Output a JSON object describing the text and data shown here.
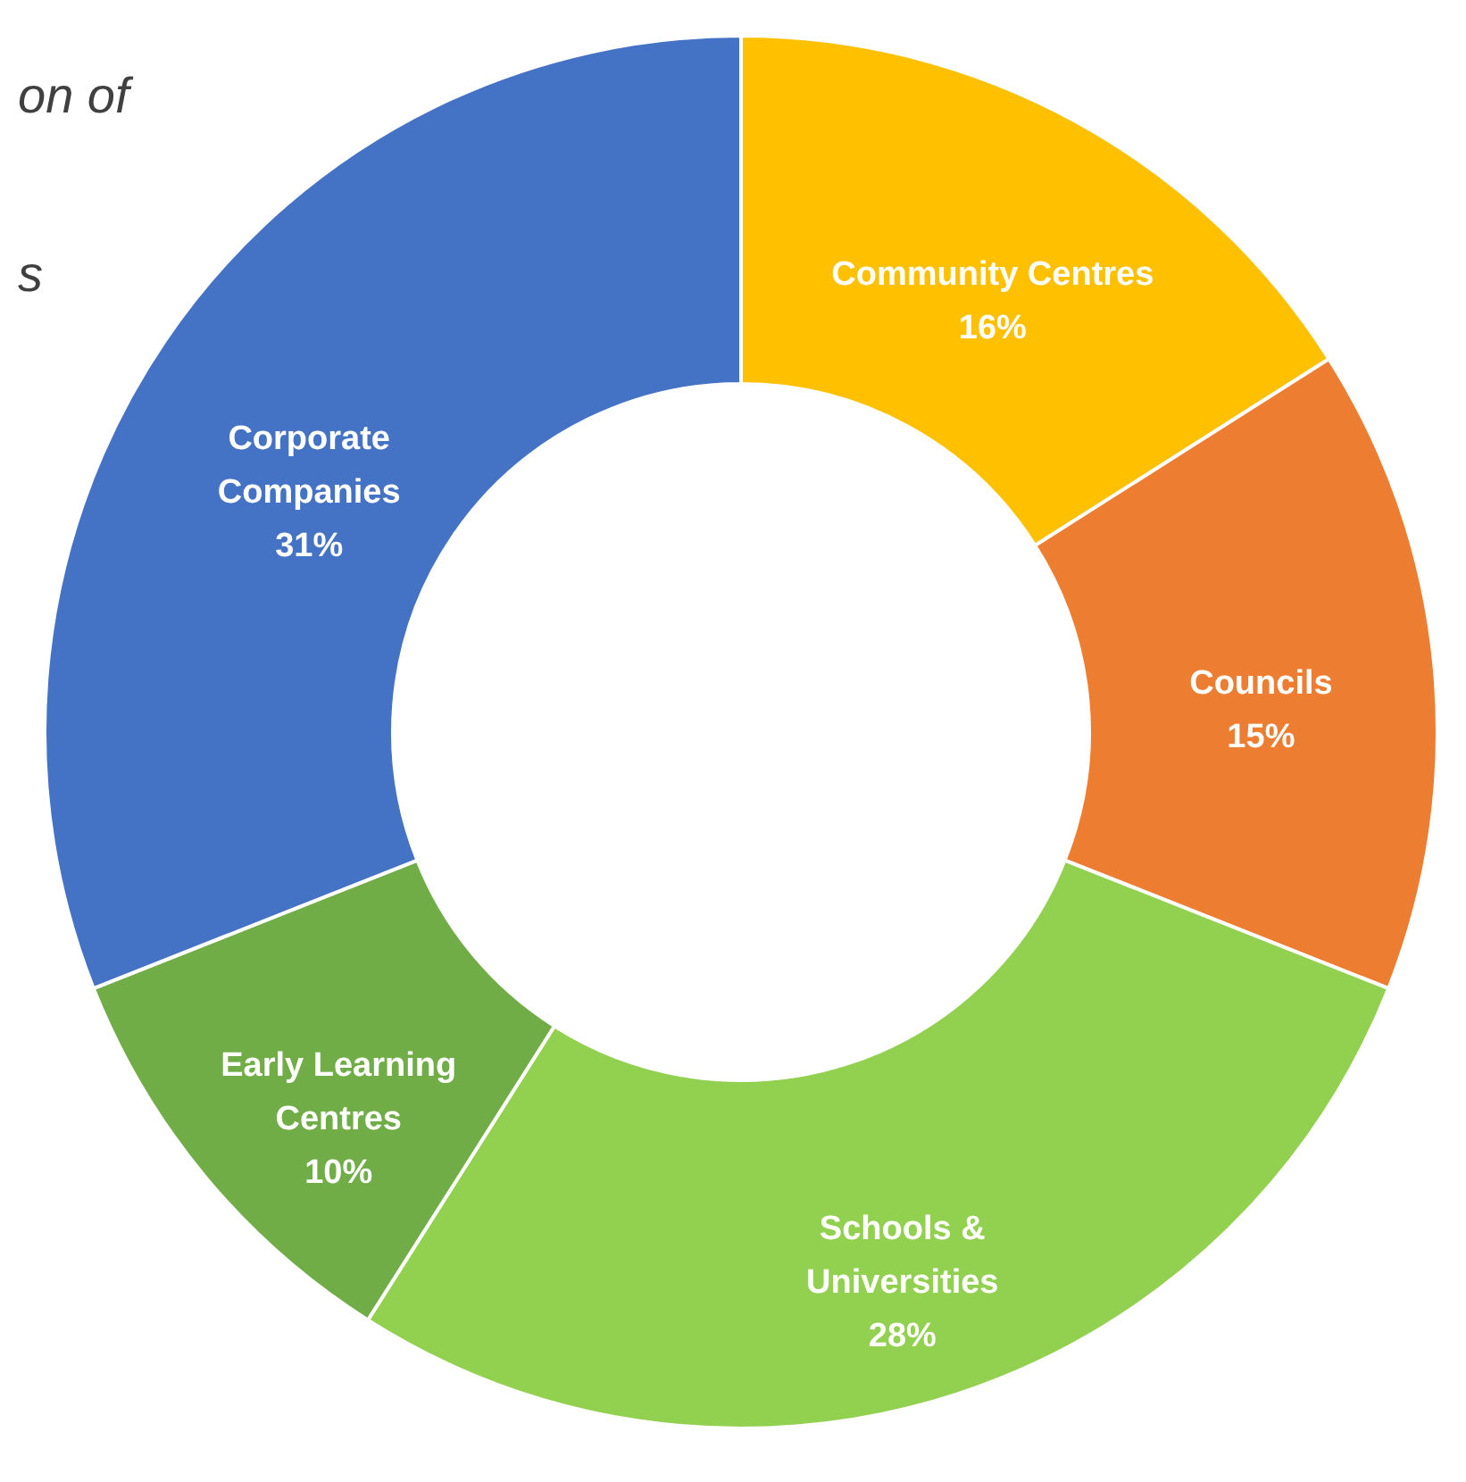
{
  "chart_data": {
    "type": "donut",
    "categories": [
      "Community Centres",
      "Councils",
      "Schools & Universities",
      "Early Learning Centres",
      "Corporate Companies"
    ],
    "values": [
      16,
      15,
      28,
      10,
      31
    ],
    "colors": [
      "#ffc000",
      "#ed7d31",
      "#92d050",
      "#70ad47",
      "#4472c4"
    ],
    "value_labels": [
      "16%",
      "15%",
      "28%",
      "10%",
      "31%"
    ],
    "legend": false,
    "annotations": [
      "on of",
      "s"
    ]
  }
}
